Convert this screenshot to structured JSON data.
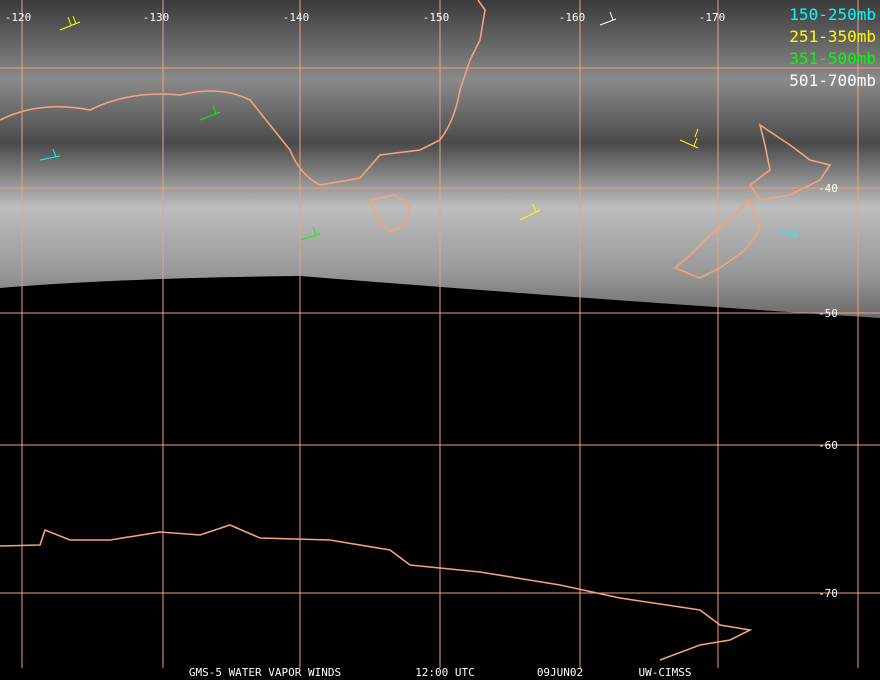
{
  "longitude_labels": [
    "-120",
    "-130",
    "-140",
    "-150",
    "-160",
    "-170"
  ],
  "latitude_labels": [
    "-40",
    "-50",
    "-60",
    "-70"
  ],
  "legend": [
    {
      "label": "150-250mb",
      "color": "#00ffff"
    },
    {
      "label": "251-350mb",
      "color": "#ffff00"
    },
    {
      "label": "351-500mb",
      "color": "#00ff00"
    },
    {
      "label": "501-700mb",
      "color": "#ffffff"
    }
  ],
  "footer": {
    "satellite": "GMS-5 WATER VAPOR WINDS",
    "time": "12:00 UTC",
    "date": "09JUN02",
    "source": "UW-CIMSS"
  }
}
